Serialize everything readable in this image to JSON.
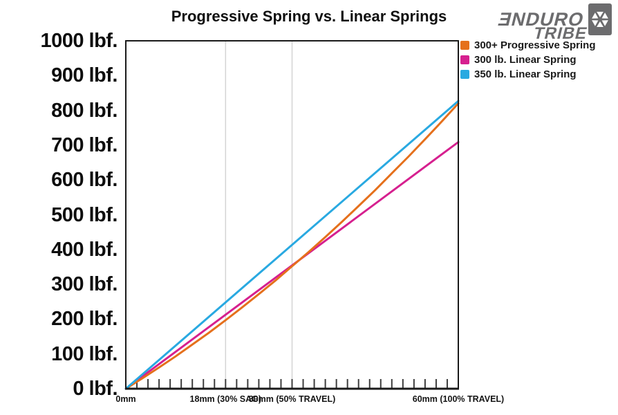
{
  "logo": {
    "line1": "ƎNDURO",
    "line2": "TRIBE",
    "icon": "facet-wheel-icon",
    "color": "#6C6C6E"
  },
  "chart_data": {
    "type": "line",
    "title": "Progressive Spring vs. Linear Springs",
    "x_unit": "mm",
    "y_unit": "lbf.",
    "xlim": [
      0,
      60
    ],
    "ylim": [
      0,
      1000
    ],
    "grid": "vertical-only",
    "x_gridlines": [
      18,
      30
    ],
    "x_minor_tick_step": 2,
    "legend_position": "top-right",
    "x_tick_labels": [
      {
        "x": 0,
        "label": "0mm"
      },
      {
        "x": 18,
        "label": "18mm (30% SAG)"
      },
      {
        "x": 30,
        "label": "30mm (50% TRAVEL)"
      },
      {
        "x": 60,
        "label": "60mm (100% TRAVEL)"
      }
    ],
    "y_tick_labels": [
      {
        "value": 1000,
        "label": "1000 lbf."
      },
      {
        "value": 900,
        "label": "900 lbf."
      },
      {
        "value": 800,
        "label": "800 lbf."
      },
      {
        "value": 700,
        "label": "700 lbf."
      },
      {
        "value": 600,
        "label": "600 lbf."
      },
      {
        "value": 500,
        "label": "500 lbf."
      },
      {
        "value": 400,
        "label": "400 lbf."
      },
      {
        "value": 300,
        "label": "300 lbf."
      },
      {
        "value": 200,
        "label": "200 lbf."
      },
      {
        "value": 100,
        "label": "100 lbf."
      },
      {
        "value": 0,
        "label": "0 lbf."
      }
    ],
    "series": [
      {
        "name": "300+ Progressive Spring",
        "color": "#E5701C",
        "shape": "progressive",
        "points": [
          [
            0,
            0
          ],
          [
            3,
            30
          ],
          [
            6,
            61
          ],
          [
            9,
            93
          ],
          [
            12,
            127
          ],
          [
            15,
            161
          ],
          [
            18,
            197
          ],
          [
            21,
            234
          ],
          [
            24,
            272
          ],
          [
            27,
            311
          ],
          [
            30,
            352
          ],
          [
            33,
            393
          ],
          [
            36,
            436
          ],
          [
            39,
            480
          ],
          [
            42,
            525
          ],
          [
            45,
            571
          ],
          [
            48,
            619
          ],
          [
            51,
            667
          ],
          [
            54,
            717
          ],
          [
            57,
            768
          ],
          [
            60,
            820
          ]
        ]
      },
      {
        "name": "300 lb. Linear Spring",
        "color": "#D6208F",
        "shape": "linear",
        "points": [
          [
            0,
            0
          ],
          [
            60,
            709
          ]
        ]
      },
      {
        "name": "350 lb. Linear Spring",
        "color": "#29A9E1",
        "shape": "linear",
        "points": [
          [
            0,
            0
          ],
          [
            60,
            827
          ]
        ]
      }
    ]
  }
}
